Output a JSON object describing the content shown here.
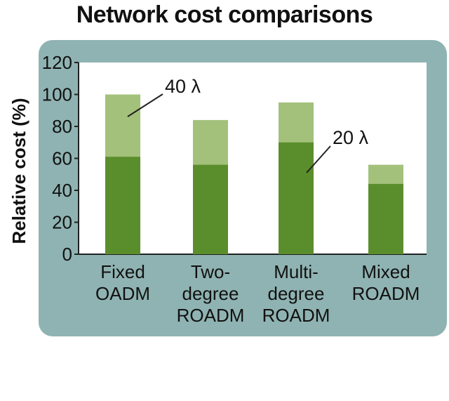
{
  "chart_data": {
    "type": "bar",
    "title": "Network cost comparisons",
    "xlabel": "",
    "ylabel": "Relative cost (%)",
    "ylim": [
      0,
      120
    ],
    "yticks": [
      0,
      20,
      40,
      60,
      80,
      100,
      120
    ],
    "categories": [
      [
        "Fixed",
        "OADM"
      ],
      [
        "Two-",
        "degree",
        "ROADM"
      ],
      [
        "Multi-",
        "degree",
        "ROADM"
      ],
      [
        "Mixed",
        "ROADM"
      ]
    ],
    "series": [
      {
        "values": [
          61,
          56,
          70,
          44
        ]
      },
      {
        "values": [
          100,
          84,
          95,
          56
        ]
      }
    ],
    "annotations": [
      {
        "text": "40 λ"
      },
      {
        "text": "20 λ"
      }
    ],
    "stacked": false,
    "grid": false,
    "colors": {
      "panel": "#8fb3b2",
      "plot_bg": "#ffffff",
      "bar_lower": "#5a8e2c",
      "bar_upper": "#a3c17b",
      "text": "#111111"
    }
  }
}
